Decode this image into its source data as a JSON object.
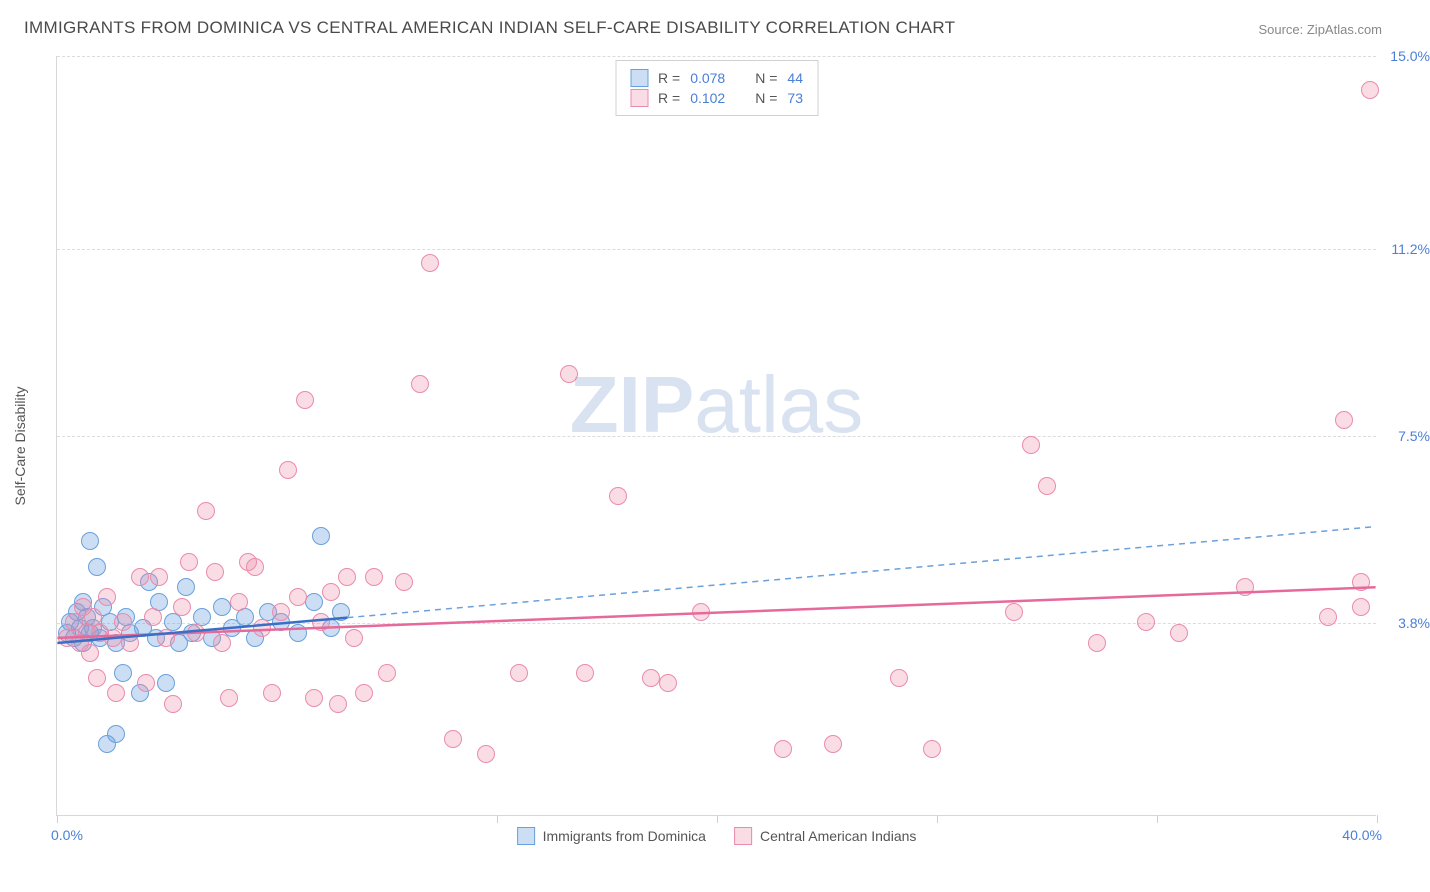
{
  "title": "IMMIGRANTS FROM DOMINICA VS CENTRAL AMERICAN INDIAN SELF-CARE DISABILITY CORRELATION CHART",
  "source": "Source: ZipAtlas.com",
  "yaxis_label": "Self-Care Disability",
  "watermark_a": "ZIP",
  "watermark_b": "atlas",
  "chart": {
    "type": "scatter",
    "xlim": [
      0,
      40
    ],
    "ylim": [
      0,
      15
    ],
    "x_label_min": "0.0%",
    "x_label_max": "40.0%",
    "x_ticks": [
      0,
      13.33,
      20,
      26.67,
      33.33,
      40
    ],
    "y_ticks": [
      {
        "v": 3.8,
        "label": "3.8%"
      },
      {
        "v": 7.5,
        "label": "7.5%"
      },
      {
        "v": 11.2,
        "label": "11.2%"
      },
      {
        "v": 15.0,
        "label": "15.0%"
      }
    ],
    "background_color": "#ffffff",
    "grid_color": "#dcdcdc",
    "marker_radius": 9,
    "series": [
      {
        "name": "Immigrants from Dominica",
        "fill": "rgba(110,160,220,0.35)",
        "stroke": "#6aa0dc",
        "r": 0.078,
        "n": 44,
        "trend": {
          "x1": 0,
          "y1": 3.4,
          "x2": 8.8,
          "y2": 3.9,
          "color": "#3b6fc6",
          "width": 2.5,
          "dash": "none"
        },
        "extrap": {
          "x1": 8.8,
          "y1": 3.9,
          "x2": 40,
          "y2": 5.7,
          "color": "#6aa0dc",
          "width": 1.5,
          "dash": "6,5"
        },
        "points": [
          [
            0.3,
            3.6
          ],
          [
            0.4,
            3.8
          ],
          [
            0.5,
            3.5
          ],
          [
            0.6,
            4.0
          ],
          [
            0.7,
            3.7
          ],
          [
            0.8,
            4.2
          ],
          [
            0.8,
            3.4
          ],
          [
            0.9,
            3.9
          ],
          [
            1.0,
            3.6
          ],
          [
            1.0,
            5.4
          ],
          [
            1.1,
            3.7
          ],
          [
            1.2,
            4.9
          ],
          [
            1.3,
            3.5
          ],
          [
            1.4,
            4.1
          ],
          [
            1.5,
            1.4
          ],
          [
            1.6,
            3.8
          ],
          [
            1.8,
            1.6
          ],
          [
            1.8,
            3.4
          ],
          [
            2.0,
            2.8
          ],
          [
            2.1,
            3.9
          ],
          [
            2.2,
            3.6
          ],
          [
            2.5,
            2.4
          ],
          [
            2.6,
            3.7
          ],
          [
            2.8,
            4.6
          ],
          [
            3.0,
            3.5
          ],
          [
            3.1,
            4.2
          ],
          [
            3.3,
            2.6
          ],
          [
            3.5,
            3.8
          ],
          [
            3.7,
            3.4
          ],
          [
            3.9,
            4.5
          ],
          [
            4.1,
            3.6
          ],
          [
            4.4,
            3.9
          ],
          [
            4.7,
            3.5
          ],
          [
            5.0,
            4.1
          ],
          [
            5.3,
            3.7
          ],
          [
            5.7,
            3.9
          ],
          [
            6.0,
            3.5
          ],
          [
            6.4,
            4.0
          ],
          [
            6.8,
            3.8
          ],
          [
            7.3,
            3.6
          ],
          [
            7.8,
            4.2
          ],
          [
            8.0,
            5.5
          ],
          [
            8.3,
            3.7
          ],
          [
            8.6,
            4.0
          ]
        ]
      },
      {
        "name": "Central American Indians",
        "fill": "rgba(240,140,170,0.30)",
        "stroke": "#e98bad",
        "r": 0.102,
        "n": 73,
        "trend": {
          "x1": 0,
          "y1": 3.5,
          "x2": 40,
          "y2": 4.5,
          "color": "#e56a9a",
          "width": 2.5,
          "dash": "none"
        },
        "points": [
          [
            0.3,
            3.5
          ],
          [
            0.5,
            3.8
          ],
          [
            0.7,
            3.4
          ],
          [
            0.8,
            4.1
          ],
          [
            0.9,
            3.6
          ],
          [
            1.0,
            3.2
          ],
          [
            1.1,
            3.9
          ],
          [
            1.2,
            2.7
          ],
          [
            1.3,
            3.6
          ],
          [
            1.5,
            4.3
          ],
          [
            1.7,
            3.5
          ],
          [
            1.8,
            2.4
          ],
          [
            2.0,
            3.8
          ],
          [
            2.2,
            3.4
          ],
          [
            2.5,
            4.7
          ],
          [
            2.7,
            2.6
          ],
          [
            2.9,
            3.9
          ],
          [
            3.1,
            4.7
          ],
          [
            3.3,
            3.5
          ],
          [
            3.5,
            2.2
          ],
          [
            3.8,
            4.1
          ],
          [
            4.0,
            5.0
          ],
          [
            4.2,
            3.6
          ],
          [
            4.5,
            6.0
          ],
          [
            4.8,
            4.8
          ],
          [
            5.0,
            3.4
          ],
          [
            5.2,
            2.3
          ],
          [
            5.5,
            4.2
          ],
          [
            5.8,
            5.0
          ],
          [
            6.0,
            4.9
          ],
          [
            6.2,
            3.7
          ],
          [
            6.5,
            2.4
          ],
          [
            6.8,
            4.0
          ],
          [
            7.0,
            6.8
          ],
          [
            7.3,
            4.3
          ],
          [
            7.5,
            8.2
          ],
          [
            7.8,
            2.3
          ],
          [
            8.0,
            3.8
          ],
          [
            8.3,
            4.4
          ],
          [
            8.5,
            2.2
          ],
          [
            8.8,
            4.7
          ],
          [
            9.0,
            3.5
          ],
          [
            9.3,
            2.4
          ],
          [
            9.6,
            4.7
          ],
          [
            10.0,
            2.8
          ],
          [
            10.5,
            4.6
          ],
          [
            11.0,
            8.5
          ],
          [
            11.3,
            10.9
          ],
          [
            12.0,
            1.5
          ],
          [
            13.0,
            1.2
          ],
          [
            14.0,
            2.8
          ],
          [
            15.5,
            8.7
          ],
          [
            16.0,
            2.8
          ],
          [
            17.0,
            6.3
          ],
          [
            18.0,
            2.7
          ],
          [
            18.5,
            2.6
          ],
          [
            19.5,
            4.0
          ],
          [
            22.0,
            1.3
          ],
          [
            23.5,
            1.4
          ],
          [
            25.5,
            2.7
          ],
          [
            26.5,
            1.3
          ],
          [
            29.0,
            4.0
          ],
          [
            29.5,
            7.3
          ],
          [
            30.0,
            6.5
          ],
          [
            31.5,
            3.4
          ],
          [
            33.0,
            3.8
          ],
          [
            34.0,
            3.6
          ],
          [
            36.0,
            4.5
          ],
          [
            38.5,
            3.9
          ],
          [
            39.0,
            7.8
          ],
          [
            39.5,
            4.1
          ],
          [
            39.8,
            14.3
          ],
          [
            39.5,
            4.6
          ]
        ]
      }
    ]
  },
  "legend_top": {
    "r_label": "R =",
    "n_label": "N ="
  }
}
